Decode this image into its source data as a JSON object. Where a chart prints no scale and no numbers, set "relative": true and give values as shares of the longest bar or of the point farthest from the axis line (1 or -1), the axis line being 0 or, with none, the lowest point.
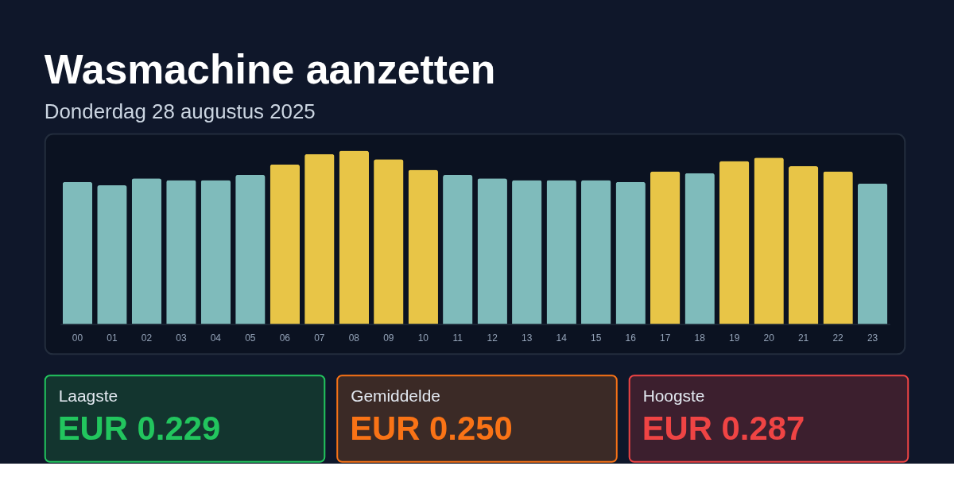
{
  "chart_data": [
    {
      "type": "bar",
      "title": "Wasmachine aanzetten",
      "subtitle": "Donderdag 28 augustus 2025",
      "categories": [
        "00",
        "01",
        "02",
        "03",
        "04",
        "05",
        "06",
        "07",
        "08",
        "09",
        "10",
        "11",
        "12",
        "13",
        "14",
        "15",
        "16",
        "17",
        "18",
        "19",
        "20",
        "21",
        "22",
        "23"
      ],
      "values": [
        0.82,
        0.8,
        0.84,
        0.83,
        0.83,
        0.86,
        0.92,
        0.98,
        1.0,
        0.95,
        0.89,
        0.86,
        0.84,
        0.83,
        0.83,
        0.83,
        0.82,
        0.88,
        0.87,
        0.94,
        0.96,
        0.91,
        0.88,
        0.81
      ],
      "colors": [
        "#7fbbbb",
        "#7fbbbb",
        "#7fbbbb",
        "#7fbbbb",
        "#7fbbbb",
        "#7fbbbb",
        "#e8c547",
        "#e8c547",
        "#e8c547",
        "#e8c547",
        "#e8c547",
        "#7fbbbb",
        "#7fbbbb",
        "#7fbbbb",
        "#7fbbbb",
        "#7fbbbb",
        "#7fbbbb",
        "#e8c547",
        "#7fbbbb",
        "#e8c547",
        "#e8c547",
        "#e8c547",
        "#e8c547",
        "#7fbbbb"
      ],
      "relative": true
    },
    {
      "type": "other",
      "title": "Laagste",
      "annotations": [
        "EUR 0.229"
      ]
    },
    {
      "type": "other",
      "title": "Gemiddelde",
      "annotations": [
        "EUR 0.250"
      ]
    },
    {
      "type": "other",
      "title": "Hoogste",
      "annotations": [
        "EUR 0.287"
      ]
    }
  ]
}
